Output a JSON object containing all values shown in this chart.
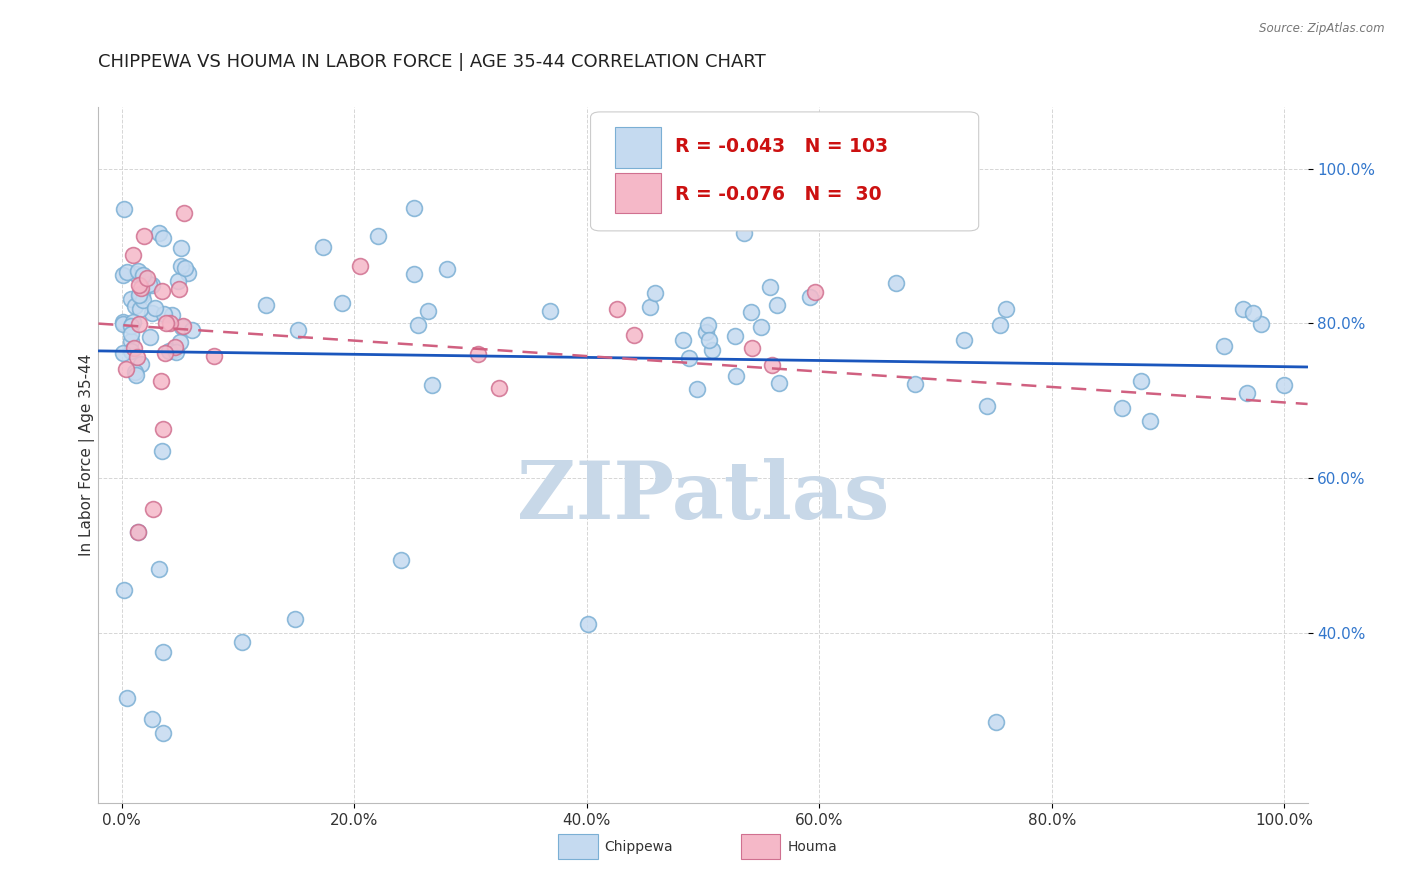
{
  "title": "CHIPPEWA VS HOUMA IN LABOR FORCE | AGE 35-44 CORRELATION CHART",
  "source_text": "Source: ZipAtlas.com",
  "ylabel": "In Labor Force | Age 35-44",
  "xlim": [
    -0.02,
    1.02
  ],
  "ylim": [
    0.18,
    1.08
  ],
  "chippewa_R": -0.043,
  "chippewa_N": 103,
  "houma_R": -0.076,
  "houma_N": 30,
  "chippewa_color_fill": "#c5daf0",
  "chippewa_color_edge": "#7bafd4",
  "houma_color_fill": "#f5b8c8",
  "houma_color_edge": "#d07090",
  "trend_blue": "#1a56bd",
  "trend_pink": "#d06080",
  "background_color": "#ffffff",
  "watermark_color": "#c8d8e8",
  "ytick_labels": [
    "40.0%",
    "60.0%",
    "80.0%",
    "100.0%"
  ],
  "ytick_values": [
    0.4,
    0.6,
    0.8,
    1.0
  ],
  "xtick_labels": [
    "0.0%",
    "20.0%",
    "40.0%",
    "60.0%",
    "80.0%",
    "100.0%"
  ],
  "xtick_values": [
    0.0,
    0.2,
    0.4,
    0.6,
    0.8,
    1.0
  ],
  "legend_R_color": "#cc1111",
  "title_color": "#222222",
  "ytick_color": "#3377cc",
  "xtick_color": "#333333"
}
